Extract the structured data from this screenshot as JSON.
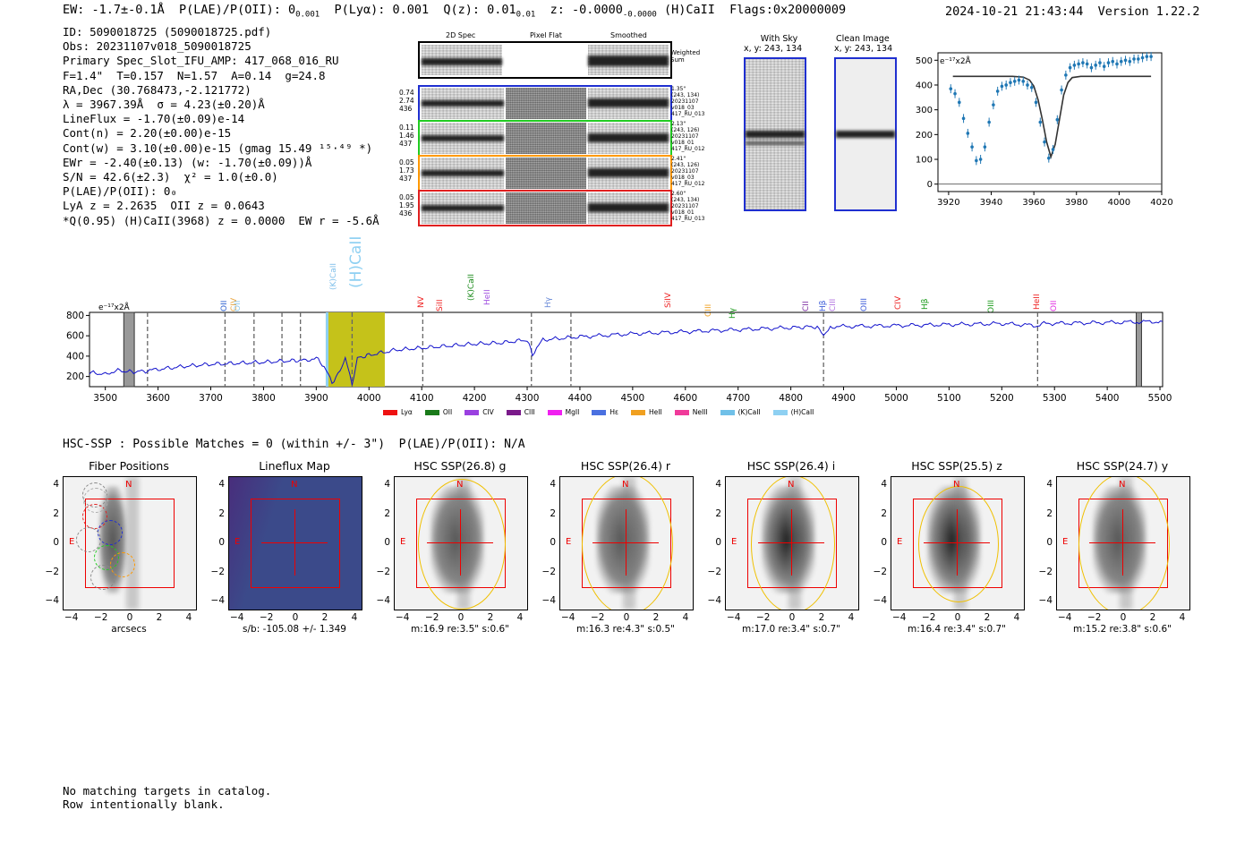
{
  "header": {
    "left": "EW: -1.7±-0.1Å  P(LAE)/P(OII): 0₀.₀₀₁  P(Lyα): 0.001  Q(z): 0.01 ⁰·⁰¹  z: -0.0000  (H)CaII  Flags:0x20000009",
    "right": "2024-10-21 21:43:44  Version 1.22.2"
  },
  "info": [
    "ID: 5090018725 (5090018725.pdf)",
    "Obs: 20231107v018_5090018725",
    "Primary Spec_Slot_IFU_AMP: 417_068_016_RU",
    "F=1.4\"  T=0.157  N=1.57  A=0.14  g=24.8",
    "RA,Dec (30.768473,-2.121772)",
    "λ = 3967.39Å  σ = 4.23(±0.20)Å",
    "LineFlux = -1.70(±0.09)e-14",
    "Cont(n) = 2.20(±0.00)e-15",
    "Cont(w) = 3.10(±0.00)e-15 (gmag 15.49 ¹⁵·⁴⁹ *)",
    "EWr = -2.40(±0.13) (w: -1.70(±0.09))Å",
    "S/N = 42.6(±2.3)  χ² = 1.0(±0.0)",
    "P(LAE)/P(OII): 0₀",
    "LyA z = 2.2635  OII z = 0.0643",
    "*Q(0.95) (H)CaII(3968) z = 0.0000  EW r = -5.6Å"
  ],
  "cutouts": {
    "col_titles": [
      "2D Spec",
      "Pixel Flat",
      "Smoothed"
    ],
    "weighted_label": "Weighted\nSum",
    "rows": [
      {
        "color": "#1f2fd0",
        "left": [
          "0.74",
          "2.74",
          "436"
        ],
        "right": [
          "1.35\"",
          "(243, 134)",
          "20231107",
          "v018_03",
          "417_RU_013"
        ]
      },
      {
        "color": "#22cc22",
        "left": [
          "0.11",
          "1.46",
          "437"
        ],
        "right": [
          "2.13\"",
          "(243, 126)",
          "20231107",
          "v018_01",
          "417_RU_012"
        ]
      },
      {
        "color": "#ff9900",
        "left": [
          "0.05",
          "1.73",
          "437"
        ],
        "right": [
          "2.41\"",
          "(243, 126)",
          "20231107",
          "v018_03",
          "417_RU_012"
        ]
      },
      {
        "color": "#e02020",
        "left": [
          "0.05",
          "1.95",
          "436"
        ],
        "right": [
          "2.60\"",
          "(243, 134)",
          "20231107",
          "v018_01",
          "417_RU_013"
        ]
      }
    ]
  },
  "sky": {
    "with_sky_title": "With Sky",
    "with_sky_coords": "x, y: 243, 134",
    "clean_title": "Clean Image",
    "clean_coords": "x, y: 243, 134"
  },
  "zoom_plot": {
    "unit_label": "e⁻¹⁷x2Å",
    "x_ticks": [
      "3920",
      "3940",
      "3960",
      "3980",
      "4000",
      "4020"
    ],
    "y_ticks": [
      "500",
      "400",
      "300",
      "200",
      "100",
      "0"
    ],
    "x_range": [
      3915,
      4020
    ],
    "y_range": [
      -30,
      530
    ],
    "points_x": [
      3921,
      3923,
      3925,
      3927,
      3929,
      3931,
      3933,
      3935,
      3937,
      3939,
      3941,
      3943,
      3945,
      3947,
      3949,
      3951,
      3953,
      3955,
      3957,
      3959,
      3961,
      3963,
      3965,
      3967,
      3969,
      3971,
      3973,
      3975,
      3977,
      3979,
      3981,
      3983,
      3985,
      3987,
      3989,
      3991,
      3993,
      3995,
      3997,
      3999,
      4001,
      4003,
      4005,
      4007,
      4009,
      4011,
      4013,
      4015
    ],
    "points_y": [
      385,
      365,
      330,
      265,
      205,
      150,
      95,
      100,
      150,
      250,
      320,
      375,
      395,
      400,
      410,
      415,
      420,
      415,
      400,
      390,
      330,
      250,
      170,
      105,
      140,
      260,
      380,
      440,
      470,
      480,
      485,
      490,
      485,
      470,
      480,
      490,
      475,
      490,
      495,
      485,
      495,
      500,
      495,
      505,
      505,
      510,
      515,
      515
    ],
    "fit_x": [
      3922,
      3950,
      3955,
      3958,
      3960,
      3962,
      3964,
      3966,
      3968,
      3970,
      3972,
      3974,
      3976,
      3978,
      3982,
      4015
    ],
    "fit_y": [
      435,
      435,
      432,
      420,
      395,
      340,
      260,
      170,
      110,
      160,
      260,
      360,
      410,
      430,
      435,
      435
    ]
  },
  "spectrum": {
    "unit_label": "e⁻¹⁷x2Å",
    "x_ticks": [
      "3500",
      "3600",
      "3700",
      "3800",
      "3900",
      "4000",
      "4100",
      "4200",
      "4300",
      "4400",
      "4500",
      "4600",
      "4700",
      "4800",
      "4900",
      "5000",
      "5100",
      "5200",
      "5300",
      "5400",
      "5500"
    ],
    "y_ticks": [
      "800",
      "600",
      "400",
      "200"
    ],
    "x_range": [
      3470,
      5505
    ],
    "y_range": [
      100,
      830
    ],
    "trace": [
      [
        3470,
        240
      ],
      [
        3500,
        220
      ],
      [
        3520,
        260
      ],
      [
        3550,
        245
      ],
      [
        3580,
        255
      ],
      [
        3600,
        270
      ],
      [
        3650,
        300
      ],
      [
        3700,
        320
      ],
      [
        3750,
        330
      ],
      [
        3800,
        340
      ],
      [
        3850,
        355
      ],
      [
        3880,
        360
      ],
      [
        3900,
        380
      ],
      [
        3915,
        300
      ],
      [
        3930,
        140
      ],
      [
        3945,
        250
      ],
      [
        3955,
        380
      ],
      [
        3968,
        110
      ],
      [
        3978,
        380
      ],
      [
        4000,
        410
      ],
      [
        4050,
        460
      ],
      [
        4100,
        480
      ],
      [
        4150,
        500
      ],
      [
        4200,
        520
      ],
      [
        4250,
        530
      ],
      [
        4300,
        560
      ],
      [
        4310,
        420
      ],
      [
        4330,
        560
      ],
      [
        4400,
        590
      ],
      [
        4500,
        620
      ],
      [
        4600,
        640
      ],
      [
        4700,
        660
      ],
      [
        4800,
        680
      ],
      [
        4850,
        690
      ],
      [
        4862,
        590
      ],
      [
        4875,
        690
      ],
      [
        5000,
        700
      ],
      [
        5100,
        710
      ],
      [
        5200,
        720
      ],
      [
        5268,
        700
      ],
      [
        5280,
        720
      ],
      [
        5400,
        730
      ],
      [
        5505,
        740
      ]
    ],
    "lines": [
      {
        "name": "OII",
        "color": "#2a5fcf"
      },
      {
        "name": "CIV",
        "color": "#e8a33a"
      },
      {
        "name": "OII",
        "color": "#8ec8ec"
      },
      {
        "name": "(K)CaII",
        "color": "#7fbfea"
      },
      {
        "name": "(H)CaII",
        "color": "#8ed0f2"
      },
      {
        "name": "NV",
        "color": "#e22"
      },
      {
        "name": "SiII",
        "color": "#e22"
      },
      {
        "name": "(K)CaII",
        "color": "#1a8a1a"
      },
      {
        "name": "HeII",
        "color": "#a050e0"
      },
      {
        "name": "Hγ",
        "color": "#6a8ad8"
      },
      {
        "name": "SiIV",
        "color": "#e22"
      },
      {
        "name": "CIII",
        "color": "#f0a020"
      },
      {
        "name": "Hγ",
        "color": "#1a9a1a"
      },
      {
        "name": "CII",
        "color": "#7a2aa0"
      },
      {
        "name": "Hβ",
        "color": "#3a5ad8"
      },
      {
        "name": "CIII",
        "color": "#b070e0"
      },
      {
        "name": "OIII",
        "color": "#3a5ad8"
      },
      {
        "name": "CIV",
        "color": "#e22"
      },
      {
        "name": "Hβ",
        "color": "#1a9a1a"
      },
      {
        "name": "OIII",
        "color": "#1a9a1a"
      },
      {
        "name": "HeII",
        "color": "#e22"
      },
      {
        "name": "OII",
        "color": "#e02ce0"
      }
    ],
    "legend": [
      {
        "name": "Lyα",
        "color": "#e11"
      },
      {
        "name": "OII",
        "color": "#1a7a1a"
      },
      {
        "name": "CIV",
        "color": "#9a40e0"
      },
      {
        "name": "CIII",
        "color": "#7a1a8a"
      },
      {
        "name": "MgII",
        "color": "#f020f0"
      },
      {
        "name": "Hε",
        "color": "#4a70e0"
      },
      {
        "name": "HeII",
        "color": "#f0a020"
      },
      {
        "name": "NeIII",
        "color": "#f03a9a"
      },
      {
        "name": "(K)CaII",
        "color": "#70c0e8"
      },
      {
        "name": "(H)CaII",
        "color": "#8ed0f2"
      }
    ]
  },
  "hsc": {
    "summary": "HSC-SSP : Possible Matches = 0 (within +/- 3\")  P(LAE)/P(OII): N/A",
    "panels": [
      {
        "title": "Fiber Positions",
        "xlabel": "arcsecs"
      },
      {
        "title": "Lineflux Map",
        "xlabel": "s/b: -105.08 +/- 1.349"
      },
      {
        "title": "HSC SSP(26.8) g",
        "xlabel": "m:16.9  re:3.5\"  s:0.6\""
      },
      {
        "title": "HSC SSP(26.4) r",
        "xlabel": "m:16.3  re:4.3\"  s:0.5\""
      },
      {
        "title": "HSC SSP(26.4) i",
        "xlabel": "m:17.0  re:3.4\"  s:0.7\""
      },
      {
        "title": "HSC SSP(25.5) z",
        "xlabel": "m:16.4  re:3.4\"  s:0.7\""
      },
      {
        "title": "HSC SSP(24.7) y",
        "xlabel": "m:15.2  re:3.8\"  s:0.6\""
      }
    ],
    "axis_ticks": [
      "4",
      "2",
      "0",
      "−2",
      "−4"
    ],
    "x_ticks": [
      "−4",
      "−2",
      "0",
      "2",
      "4"
    ],
    "north": "N",
    "east": "E"
  },
  "footer": [
    "No matching targets in catalog.",
    "Row intentionally blank."
  ]
}
